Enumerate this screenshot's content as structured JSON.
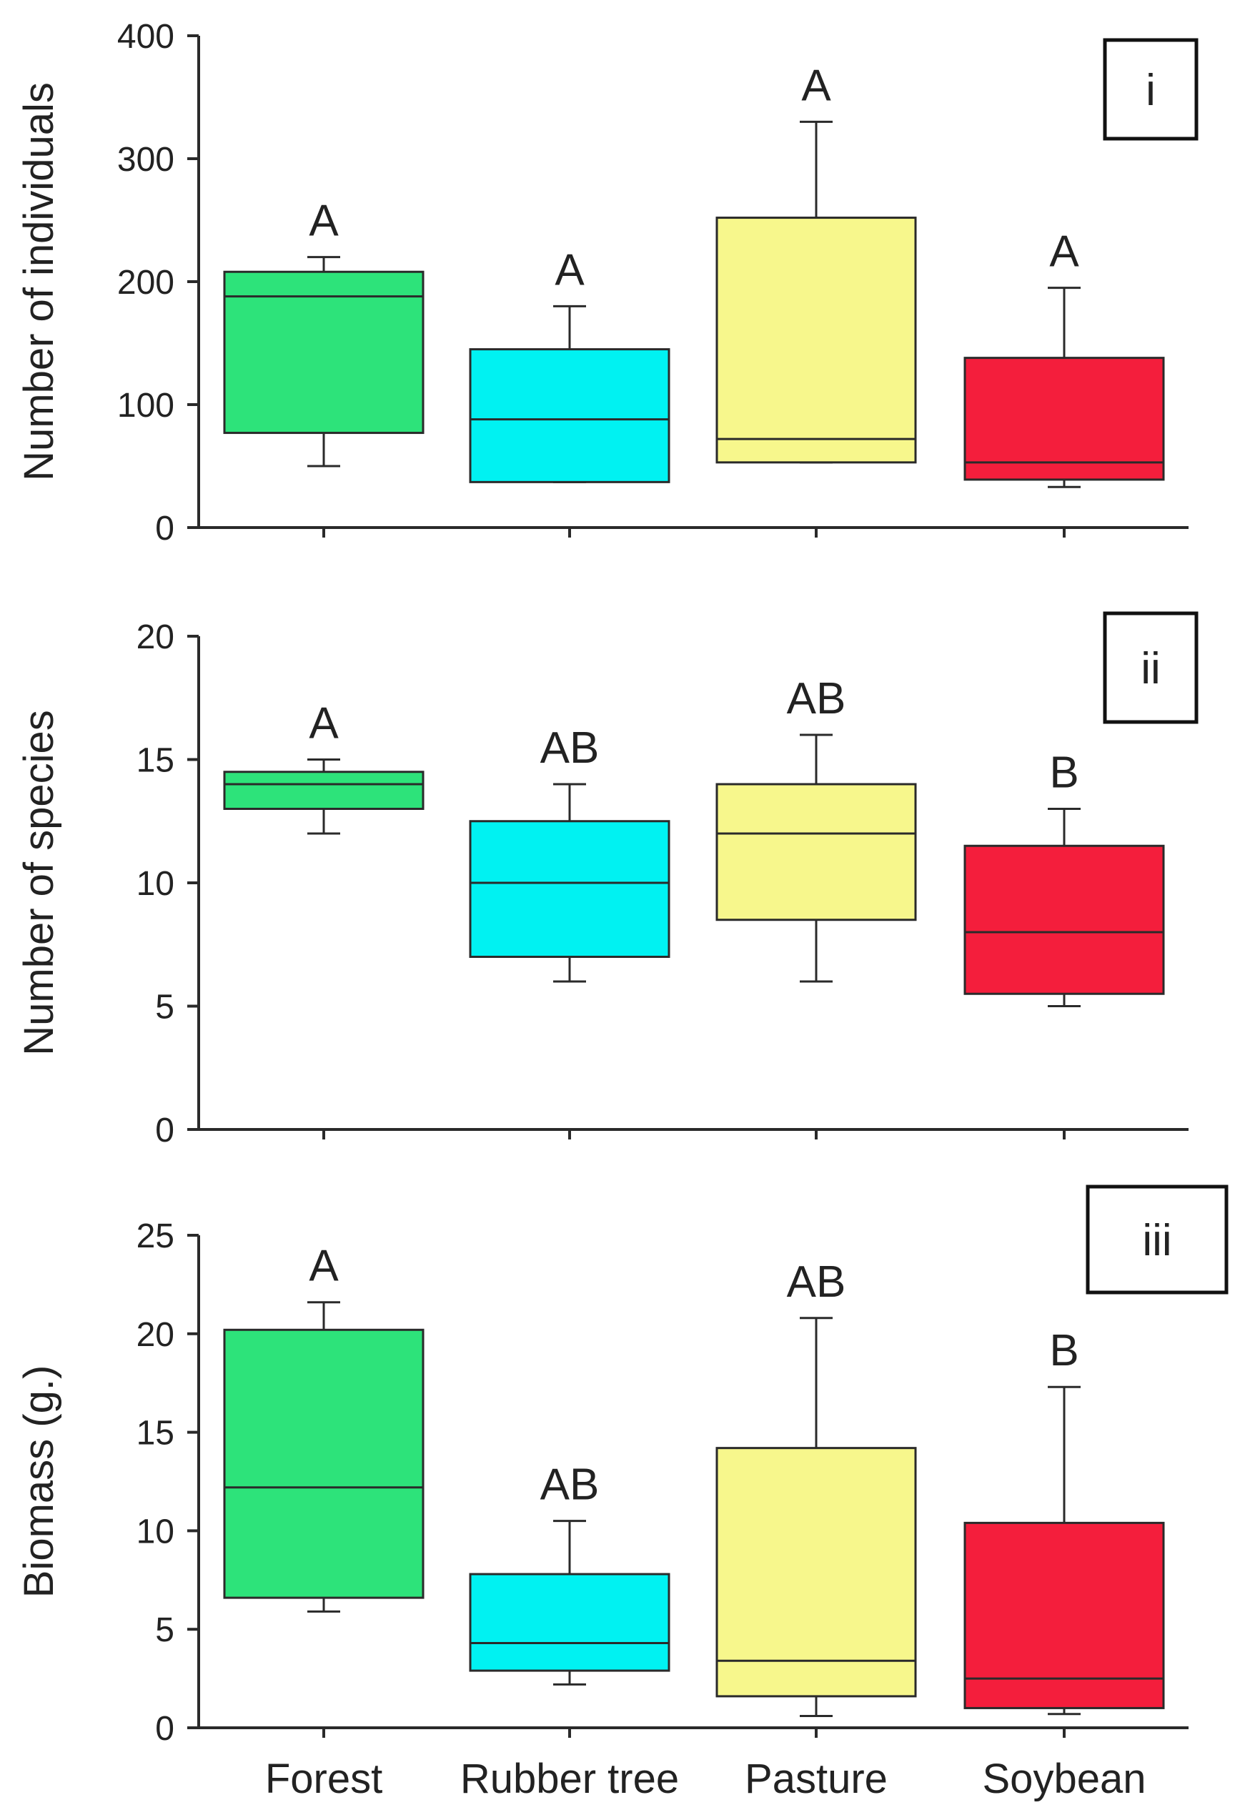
{
  "chart_data": [
    {
      "type": "box",
      "panel_tag": "i",
      "ylabel": "Number of individuals",
      "xlabel": "",
      "ylim": [
        0,
        400
      ],
      "yticks": [
        0,
        100,
        200,
        300,
        400
      ],
      "grid": false,
      "categories": [
        "Forest",
        "Rubber tree",
        "Pasture",
        "Soybean"
      ],
      "colors": [
        "#2de37a",
        "#00f2f2",
        "#f7f78c",
        "#f41e3c"
      ],
      "boxes": [
        {
          "category": "Forest",
          "whisker_low": 50,
          "q1": 77,
          "median": 188,
          "q3": 208,
          "whisker_high": 220,
          "letter": "A"
        },
        {
          "category": "Rubber tree",
          "whisker_low": 37,
          "q1": 37,
          "median": 88,
          "q3": 145,
          "whisker_high": 180,
          "letter": "A"
        },
        {
          "category": "Pasture",
          "whisker_low": 53,
          "q1": 53,
          "median": 72,
          "q3": 252,
          "whisker_high": 330,
          "letter": "A"
        },
        {
          "category": "Soybean",
          "whisker_low": 33,
          "q1": 39,
          "median": 53,
          "q3": 138,
          "whisker_high": 195,
          "letter": "A"
        }
      ]
    },
    {
      "type": "box",
      "panel_tag": "ii",
      "ylabel": "Number of species",
      "xlabel": "",
      "ylim": [
        0,
        20
      ],
      "yticks": [
        0,
        5,
        10,
        15,
        20
      ],
      "grid": false,
      "categories": [
        "Forest",
        "Rubber tree",
        "Pasture",
        "Soybean"
      ],
      "colors": [
        "#2de37a",
        "#00f2f2",
        "#f7f78c",
        "#f41e3c"
      ],
      "boxes": [
        {
          "category": "Forest",
          "whisker_low": 12,
          "q1": 13,
          "median": 14,
          "q3": 14.5,
          "whisker_high": 15,
          "letter": "A"
        },
        {
          "category": "Rubber tree",
          "whisker_low": 6,
          "q1": 7,
          "median": 10,
          "q3": 12.5,
          "whisker_high": 14,
          "letter": "AB"
        },
        {
          "category": "Pasture",
          "whisker_low": 6,
          "q1": 8.5,
          "median": 12,
          "q3": 14,
          "whisker_high": 16,
          "letter": "AB"
        },
        {
          "category": "Soybean",
          "whisker_low": 5,
          "q1": 5.5,
          "median": 8,
          "q3": 11.5,
          "whisker_high": 13,
          "letter": "B"
        }
      ]
    },
    {
      "type": "box",
      "panel_tag": "iii",
      "ylabel": "Biomass (g.)",
      "xlabel": "",
      "ylim": [
        0,
        25
      ],
      "yticks": [
        0,
        5,
        10,
        15,
        20,
        25
      ],
      "grid": false,
      "categories": [
        "Forest",
        "Rubber tree",
        "Pasture",
        "Soybean"
      ],
      "colors": [
        "#2de37a",
        "#00f2f2",
        "#f7f78c",
        "#f41e3c"
      ],
      "boxes": [
        {
          "category": "Forest",
          "whisker_low": 5.9,
          "q1": 6.6,
          "median": 12.2,
          "q3": 20.2,
          "whisker_high": 21.6,
          "letter": "A"
        },
        {
          "category": "Rubber tree",
          "whisker_low": 2.2,
          "q1": 2.9,
          "median": 4.3,
          "q3": 7.8,
          "whisker_high": 10.5,
          "letter": "AB"
        },
        {
          "category": "Pasture",
          "whisker_low": 0.6,
          "q1": 1.6,
          "median": 3.4,
          "q3": 14.2,
          "whisker_high": 20.8,
          "letter": "AB"
        },
        {
          "category": "Soybean",
          "whisker_low": 0.7,
          "q1": 1.0,
          "median": 2.5,
          "q3": 10.4,
          "whisker_high": 17.3,
          "letter": "B"
        }
      ]
    }
  ]
}
